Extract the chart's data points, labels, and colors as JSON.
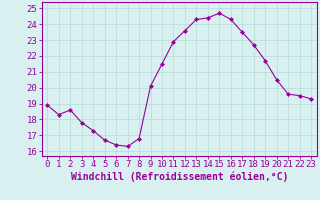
{
  "hours": [
    0,
    1,
    2,
    3,
    4,
    5,
    6,
    7,
    8,
    9,
    10,
    11,
    12,
    13,
    14,
    15,
    16,
    17,
    18,
    19,
    20,
    21,
    22,
    23
  ],
  "values": [
    18.9,
    18.3,
    18.6,
    17.8,
    17.3,
    16.7,
    16.4,
    16.3,
    16.8,
    20.1,
    21.5,
    22.9,
    23.6,
    24.3,
    24.4,
    24.7,
    24.3,
    23.5,
    22.7,
    21.7,
    20.5,
    19.6,
    19.5,
    19.3
  ],
  "line_color": "#990099",
  "marker": "D",
  "marker_size": 2.0,
  "bg_color": "#d8f0f0",
  "grid_color": "#b8d8d8",
  "ylabel_ticks": [
    16,
    17,
    18,
    19,
    20,
    21,
    22,
    23,
    24,
    25
  ],
  "xlabel": "Windchill (Refroidissement éolien,°C)",
  "xlim": [
    -0.5,
    23.5
  ],
  "ylim": [
    15.7,
    25.4
  ],
  "tick_label_color": "#990099",
  "xlabel_color": "#990099",
  "font_size": 6.5,
  "xlabel_font_size": 7.0
}
